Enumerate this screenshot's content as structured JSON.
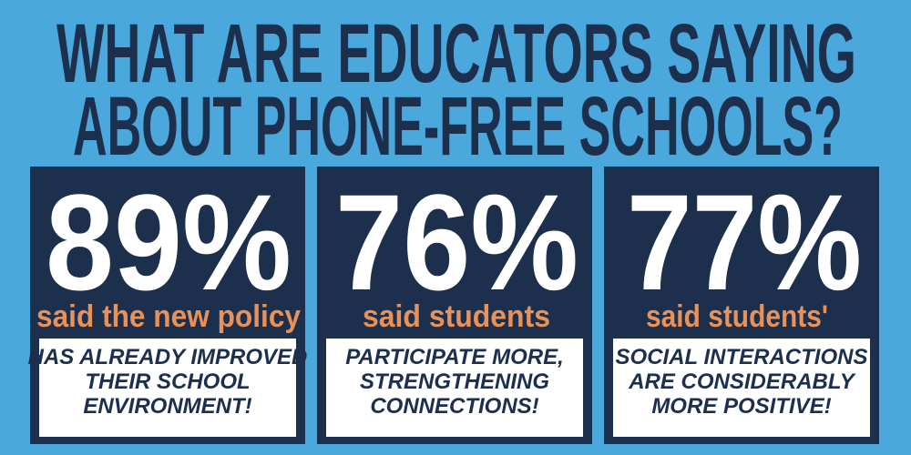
{
  "title": {
    "lines": [
      "WHAT ARE EDUCATORS SAYING",
      "ABOUT PHONE-FREE SCHOOLS?"
    ]
  },
  "stats": [
    {
      "percent": "89%",
      "lead": "said the new policy",
      "detail": [
        "HAS ALREADY IMPROVED",
        "THEIR SCHOOL",
        "ENVIRONMENT!"
      ]
    },
    {
      "percent": "76%",
      "lead": "said students",
      "detail": [
        "PARTICIPATE MORE,",
        "STRENGTHENING",
        "CONNECTIONS!"
      ]
    },
    {
      "percent": "77%",
      "lead": "said students'",
      "detail": [
        "SOCIAL INTERACTIONS",
        "ARE CONSIDERABLY",
        "MORE POSITIVE!"
      ]
    }
  ]
}
